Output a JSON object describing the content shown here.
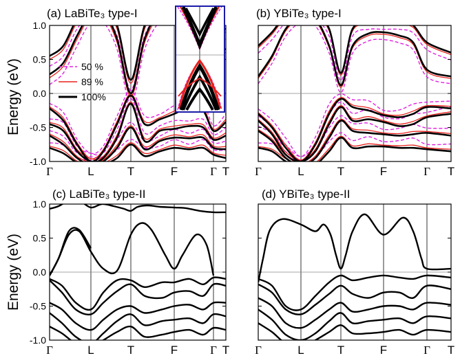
{
  "figure": {
    "ylabel": "Energy (eV)"
  },
  "chart_data": [
    {
      "id": "a",
      "type": "line",
      "title": "(a) LaBiTe₃ type-I",
      "ylabel": "Energy (eV)",
      "ylim": [
        -1.0,
        1.0
      ],
      "yticks": [
        "1.0",
        "0.5",
        "0.0",
        "-0.5",
        "-1.0"
      ],
      "kpoints": [
        "Γ",
        "L",
        "T",
        "F",
        "Γ",
        "T"
      ],
      "fermi_level": 0.0,
      "legend": {
        "position": "center-left",
        "entries": [
          "50 %",
          "89 %",
          "100%"
        ]
      },
      "inset": {
        "position": "top-right",
        "frame_color": "#1a1aa8",
        "note": "zoom near T"
      },
      "series": [
        {
          "name": "50 %",
          "color": "#e020e0",
          "style": "dashed"
        },
        {
          "name": "89 %",
          "color": "#e8201c",
          "style": "solid"
        },
        {
          "name": "100%",
          "color": "#000000",
          "style": "solid-thick"
        }
      ],
      "bands_100": [
        [
          0.3,
          0.45,
          0.95,
          1.15,
          1.2,
          1.2,
          1.2
        ],
        [
          0.75,
          0.9,
          1.2,
          1.2,
          1.2,
          1.2,
          1.2
        ],
        [
          -0.25,
          -0.45,
          -0.85,
          -0.3,
          -0.03,
          -0.15,
          -0.55,
          -0.4
        ],
        [
          -0.5,
          -0.7,
          -1.0,
          -0.55,
          -0.25,
          -0.45,
          -0.7,
          -0.65
        ],
        [
          -0.8,
          -0.9,
          -1.0,
          -0.8,
          -0.6,
          -0.8,
          -0.8,
          -0.88
        ]
      ]
    },
    {
      "id": "b",
      "type": "line",
      "title": "(b) YBiTe₃ type-I",
      "ylim": [
        -1.0,
        1.0
      ],
      "kpoints": [
        "Γ",
        "L",
        "T",
        "F",
        "Γ",
        "T"
      ],
      "fermi_level": 0.0
    },
    {
      "id": "c",
      "type": "line",
      "title": "(c) LaBiTe₃ type-II",
      "ylabel": "Energy (eV)",
      "ylim": [
        -1.0,
        1.0
      ],
      "yticks": [
        "1.0",
        "0.5",
        "0.0",
        "-0.5",
        "-1.0"
      ],
      "kpoints": [
        "Γ",
        "L",
        "T",
        "F",
        "Γ",
        "T"
      ],
      "fermi_level": 0.0
    },
    {
      "id": "d",
      "type": "line",
      "title": "(d) YBiTe₃ type-II",
      "ylim": [
        -1.0,
        1.0
      ],
      "kpoints": [
        "Γ",
        "L",
        "T",
        "F",
        "Γ",
        "T"
      ],
      "fermi_level": 0.0
    }
  ]
}
